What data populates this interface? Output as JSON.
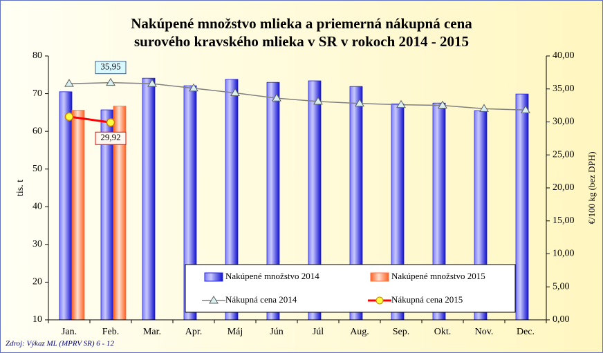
{
  "chart_data": {
    "type": "bar_line",
    "title": [
      "Nakúpené množstvo mlieka a priemerná nákupná cena",
      "surového kravského mlieka v SR v rokoch 2014 - 2015"
    ],
    "y_label": "tis. t",
    "y2_label": "€/100 kg (bez DPH)",
    "source": "Zdroj: Výkaz ML (MPRV SR) 6 - 12",
    "categories": [
      "Jan.",
      "Feb.",
      "Mar.",
      "Apr.",
      "Máj",
      "Jún",
      "Júl",
      "Aug.",
      "Sep.",
      "Okt.",
      "Nov.",
      "Dec."
    ],
    "ylim": [
      10,
      80
    ],
    "yticks": [
      10,
      20,
      30,
      40,
      50,
      60,
      70,
      80
    ],
    "y2lim": [
      0,
      40
    ],
    "y2ticks": [
      {
        "value": 0,
        "label": "0,00"
      },
      {
        "value": 5,
        "label": "5,00"
      },
      {
        "value": 10,
        "label": "10,00"
      },
      {
        "value": 15,
        "label": "15,00"
      },
      {
        "value": 20,
        "label": "20,00"
      },
      {
        "value": 25,
        "label": "25,00"
      },
      {
        "value": 30,
        "label": "30,00"
      },
      {
        "value": 35,
        "label": "35,00"
      },
      {
        "value": 40,
        "label": "40,00"
      }
    ],
    "legend": "bottom-right",
    "series": [
      {
        "name": "Nakúpené množstvo 2014",
        "kind": "bar",
        "color": "#2020e0",
        "values": [
          70.5,
          65.7,
          74.1,
          72.1,
          73.8,
          73.0,
          73.4,
          71.9,
          67.3,
          67.5,
          65.5,
          69.9
        ]
      },
      {
        "name": "Nakúpené množstvo 2015",
        "kind": "bar",
        "color": "#ff7040",
        "values": [
          65.6,
          66.7,
          null,
          null,
          null,
          null,
          null,
          null,
          null,
          null,
          null,
          null
        ]
      },
      {
        "name": "Nákupná cena 2014",
        "kind": "line",
        "axis": "y2",
        "color": "#808080",
        "values": [
          35.8,
          35.95,
          35.8,
          35.1,
          34.4,
          33.6,
          33.1,
          32.8,
          32.6,
          32.5,
          32.0,
          31.8
        ],
        "value_labels": [
          null,
          "35,95",
          null,
          null,
          null,
          null,
          null,
          null,
          null,
          null,
          null,
          null
        ]
      },
      {
        "name": "Nákupná cena 2015",
        "kind": "line",
        "axis": "y2",
        "color": "#ff0000",
        "values": [
          30.8,
          29.92,
          null,
          null,
          null,
          null,
          null,
          null,
          null,
          null,
          null,
          null
        ],
        "value_labels": [
          null,
          "29,92",
          null,
          null,
          null,
          null,
          null,
          null,
          null,
          null,
          null,
          null
        ]
      }
    ]
  }
}
